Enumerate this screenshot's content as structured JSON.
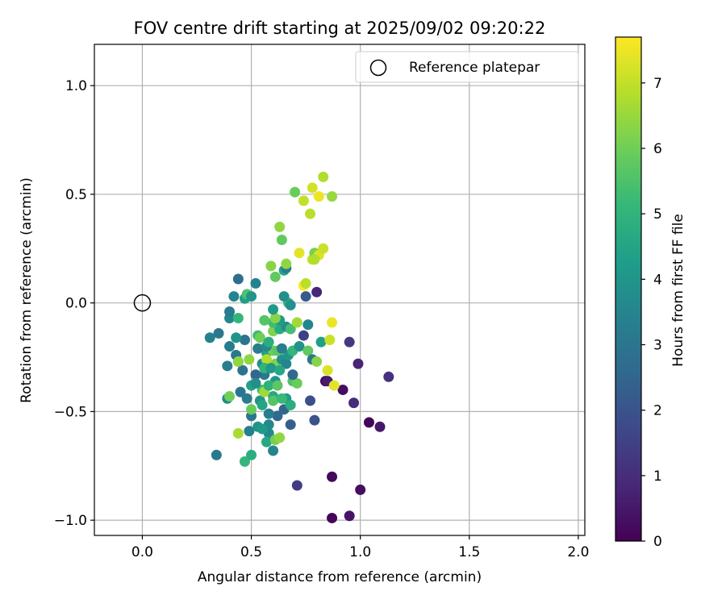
{
  "chart_data": {
    "type": "scatter",
    "title": "FOV centre drift starting at 2025/09/02 09:20:22",
    "xlabel": "Angular distance from reference (arcmin)",
    "ylabel": "Rotation from reference (arcmin)",
    "xlim": [
      -0.22,
      2.03
    ],
    "ylim": [
      -1.07,
      1.19
    ],
    "xticks": [
      0.0,
      0.5,
      1.0,
      1.5,
      2.0
    ],
    "xtick_labels": [
      "0.0",
      "0.5",
      "1.0",
      "1.5",
      "2.0"
    ],
    "yticks": [
      -1.0,
      -0.5,
      0.0,
      0.5,
      1.0
    ],
    "ytick_labels": [
      "−1.0",
      "−0.5",
      "0.0",
      "0.5",
      "1.0"
    ],
    "grid": true,
    "legend": {
      "location": "top-right",
      "entries": [
        {
          "label": "Reference platepar",
          "marker": "open-circle"
        }
      ]
    },
    "reference_point": {
      "x": 0.0,
      "y": 0.0
    },
    "colorbar": {
      "label": "Hours from first FF file",
      "range": [
        0,
        7.7
      ],
      "ticks": [
        0,
        1,
        2,
        3,
        4,
        5,
        6,
        7
      ],
      "tick_labels": [
        "0",
        "1",
        "2",
        "3",
        "4",
        "5",
        "6",
        "7"
      ],
      "colormap": [
        "#440154",
        "#482878",
        "#3e4989",
        "#31688e",
        "#26828e",
        "#1f9e89",
        "#35b779",
        "#6ece58",
        "#b5de2b",
        "#fde725"
      ]
    },
    "points": [
      {
        "x": 0.87,
        "y": -0.99,
        "c": 0.1
      },
      {
        "x": 0.95,
        "y": -0.98,
        "c": 0.4
      },
      {
        "x": 1.0,
        "y": -0.86,
        "c": 0.3
      },
      {
        "x": 0.87,
        "y": -0.8,
        "c": 0.2
      },
      {
        "x": 0.71,
        "y": -0.84,
        "c": 1.4
      },
      {
        "x": 1.04,
        "y": -0.55,
        "c": 0.1
      },
      {
        "x": 1.09,
        "y": -0.57,
        "c": 0.5
      },
      {
        "x": 0.97,
        "y": -0.46,
        "c": 0.9
      },
      {
        "x": 0.92,
        "y": -0.4,
        "c": 0.3
      },
      {
        "x": 0.84,
        "y": -0.36,
        "c": 0.2
      },
      {
        "x": 0.99,
        "y": -0.28,
        "c": 0.8
      },
      {
        "x": 1.13,
        "y": -0.34,
        "c": 1.1
      },
      {
        "x": 0.95,
        "y": -0.18,
        "c": 1.3
      },
      {
        "x": 0.79,
        "y": -0.54,
        "c": 2.0
      },
      {
        "x": 0.77,
        "y": -0.45,
        "c": 1.9
      },
      {
        "x": 0.75,
        "y": 0.03,
        "c": 2.2
      },
      {
        "x": 0.8,
        "y": 0.05,
        "c": 0.8
      },
      {
        "x": 0.74,
        "y": -0.15,
        "c": 1.5
      },
      {
        "x": 0.34,
        "y": -0.7,
        "c": 3.1
      },
      {
        "x": 0.6,
        "y": -0.68,
        "c": 3.5
      },
      {
        "x": 0.49,
        "y": -0.59,
        "c": 3.4
      },
      {
        "x": 0.53,
        "y": -0.57,
        "c": 4.0
      },
      {
        "x": 0.58,
        "y": -0.56,
        "c": 3.6
      },
      {
        "x": 0.68,
        "y": -0.56,
        "c": 2.3
      },
      {
        "x": 0.62,
        "y": -0.52,
        "c": 2.6
      },
      {
        "x": 0.5,
        "y": -0.52,
        "c": 3.0
      },
      {
        "x": 0.58,
        "y": -0.51,
        "c": 3.3
      },
      {
        "x": 0.65,
        "y": -0.49,
        "c": 2.5
      },
      {
        "x": 0.48,
        "y": -0.44,
        "c": 3.2
      },
      {
        "x": 0.54,
        "y": -0.45,
        "c": 3.9
      },
      {
        "x": 0.39,
        "y": -0.44,
        "c": 3.7
      },
      {
        "x": 0.45,
        "y": -0.41,
        "c": 3.0
      },
      {
        "x": 0.6,
        "y": -0.43,
        "c": 4.6
      },
      {
        "x": 0.66,
        "y": -0.44,
        "c": 4.2
      },
      {
        "x": 0.68,
        "y": -0.47,
        "c": 4.8
      },
      {
        "x": 0.55,
        "y": -0.4,
        "c": 5.3
      },
      {
        "x": 0.5,
        "y": -0.38,
        "c": 4.4
      },
      {
        "x": 0.56,
        "y": -0.33,
        "c": 3.1
      },
      {
        "x": 0.52,
        "y": -0.33,
        "c": 2.6
      },
      {
        "x": 0.61,
        "y": -0.36,
        "c": 4.0
      },
      {
        "x": 0.69,
        "y": -0.36,
        "c": 5.5
      },
      {
        "x": 0.71,
        "y": -0.37,
        "c": 5.9
      },
      {
        "x": 0.69,
        "y": -0.33,
        "c": 2.6
      },
      {
        "x": 0.55,
        "y": -0.28,
        "c": 3.8
      },
      {
        "x": 0.44,
        "y": -0.27,
        "c": 4.6
      },
      {
        "x": 0.39,
        "y": -0.29,
        "c": 3.3
      },
      {
        "x": 0.46,
        "y": -0.31,
        "c": 2.9
      },
      {
        "x": 0.49,
        "y": -0.26,
        "c": 6.4
      },
      {
        "x": 0.43,
        "y": -0.24,
        "c": 3.1
      },
      {
        "x": 0.61,
        "y": -0.28,
        "c": 6.2
      },
      {
        "x": 0.64,
        "y": -0.26,
        "c": 3.8
      },
      {
        "x": 0.66,
        "y": -0.28,
        "c": 3.5
      },
      {
        "x": 0.67,
        "y": -0.24,
        "c": 4.0
      },
      {
        "x": 0.57,
        "y": -0.23,
        "c": 4.4
      },
      {
        "x": 0.57,
        "y": -0.26,
        "c": 6.8
      },
      {
        "x": 0.6,
        "y": -0.22,
        "c": 6.0
      },
      {
        "x": 0.53,
        "y": -0.21,
        "c": 3.3
      },
      {
        "x": 0.69,
        "y": -0.22,
        "c": 5.1
      },
      {
        "x": 0.72,
        "y": -0.2,
        "c": 3.9
      },
      {
        "x": 0.76,
        "y": -0.22,
        "c": 5.8
      },
      {
        "x": 0.78,
        "y": -0.26,
        "c": 3.1
      },
      {
        "x": 0.8,
        "y": -0.27,
        "c": 6.3
      },
      {
        "x": 0.85,
        "y": -0.31,
        "c": 7.3
      },
      {
        "x": 0.4,
        "y": -0.2,
        "c": 3.2
      },
      {
        "x": 0.47,
        "y": -0.17,
        "c": 3.0
      },
      {
        "x": 0.43,
        "y": -0.16,
        "c": 4.0
      },
      {
        "x": 0.53,
        "y": -0.15,
        "c": 5.3
      },
      {
        "x": 0.54,
        "y": -0.16,
        "c": 6.0
      },
      {
        "x": 0.6,
        "y": -0.13,
        "c": 6.2
      },
      {
        "x": 0.63,
        "y": -0.12,
        "c": 4.7
      },
      {
        "x": 0.66,
        "y": -0.11,
        "c": 3.8
      },
      {
        "x": 0.68,
        "y": -0.12,
        "c": 5.4
      },
      {
        "x": 0.71,
        "y": -0.09,
        "c": 6.6
      },
      {
        "x": 0.6,
        "y": -0.09,
        "c": 5.3
      },
      {
        "x": 0.56,
        "y": -0.08,
        "c": 5.6
      },
      {
        "x": 0.63,
        "y": -0.08,
        "c": 4.2
      },
      {
        "x": 0.61,
        "y": -0.07,
        "c": 6.3
      },
      {
        "x": 0.76,
        "y": -0.1,
        "c": 3.5
      },
      {
        "x": 0.87,
        "y": -0.09,
        "c": 7.5
      },
      {
        "x": 0.82,
        "y": -0.18,
        "c": 4.3
      },
      {
        "x": 0.86,
        "y": -0.17,
        "c": 7.1
      },
      {
        "x": 0.31,
        "y": -0.16,
        "c": 3.4
      },
      {
        "x": 0.35,
        "y": -0.14,
        "c": 3.1
      },
      {
        "x": 0.4,
        "y": -0.07,
        "c": 3.5
      },
      {
        "x": 0.4,
        "y": -0.04,
        "c": 3.2
      },
      {
        "x": 0.44,
        "y": -0.07,
        "c": 5.1
      },
      {
        "x": 0.6,
        "y": -0.03,
        "c": 4.2
      },
      {
        "x": 0.67,
        "y": 0.0,
        "c": 5.0
      },
      {
        "x": 0.68,
        "y": -0.01,
        "c": 3.9
      },
      {
        "x": 0.42,
        "y": 0.03,
        "c": 3.5
      },
      {
        "x": 0.47,
        "y": 0.02,
        "c": 4.3
      },
      {
        "x": 0.48,
        "y": 0.04,
        "c": 5.5
      },
      {
        "x": 0.5,
        "y": 0.03,
        "c": 4.0
      },
      {
        "x": 0.44,
        "y": 0.11,
        "c": 2.8
      },
      {
        "x": 0.52,
        "y": 0.09,
        "c": 3.4
      },
      {
        "x": 0.65,
        "y": 0.03,
        "c": 3.8
      },
      {
        "x": 0.61,
        "y": 0.12,
        "c": 5.8
      },
      {
        "x": 0.65,
        "y": 0.15,
        "c": 4.5
      },
      {
        "x": 0.66,
        "y": 0.16,
        "c": 3.3
      },
      {
        "x": 0.66,
        "y": 0.18,
        "c": 6.4
      },
      {
        "x": 0.59,
        "y": 0.17,
        "c": 6.3
      },
      {
        "x": 0.74,
        "y": 0.08,
        "c": 7.7
      },
      {
        "x": 0.75,
        "y": 0.09,
        "c": 6.9
      },
      {
        "x": 0.72,
        "y": 0.23,
        "c": 7.4
      },
      {
        "x": 0.78,
        "y": 0.2,
        "c": 7.0
      },
      {
        "x": 0.79,
        "y": 0.23,
        "c": 6.1
      },
      {
        "x": 0.81,
        "y": 0.22,
        "c": 7.3
      },
      {
        "x": 0.83,
        "y": 0.25,
        "c": 7.1
      },
      {
        "x": 0.79,
        "y": 0.2,
        "c": 6.8
      },
      {
        "x": 0.64,
        "y": 0.29,
        "c": 5.8
      },
      {
        "x": 0.63,
        "y": 0.35,
        "c": 6.4
      },
      {
        "x": 0.77,
        "y": 0.41,
        "c": 6.9
      },
      {
        "x": 0.74,
        "y": 0.47,
        "c": 7.0
      },
      {
        "x": 0.7,
        "y": 0.51,
        "c": 5.9
      },
      {
        "x": 0.78,
        "y": 0.53,
        "c": 7.2
      },
      {
        "x": 0.81,
        "y": 0.49,
        "c": 7.5
      },
      {
        "x": 0.87,
        "y": 0.49,
        "c": 6.5
      },
      {
        "x": 0.83,
        "y": 0.58,
        "c": 6.8
      },
      {
        "x": 0.58,
        "y": -0.6,
        "c": 3.6
      },
      {
        "x": 0.55,
        "y": -0.58,
        "c": 4.2
      },
      {
        "x": 0.57,
        "y": -0.64,
        "c": 4.6
      },
      {
        "x": 0.61,
        "y": -0.63,
        "c": 6.1
      },
      {
        "x": 0.63,
        "y": -0.62,
        "c": 6.4
      },
      {
        "x": 0.44,
        "y": -0.6,
        "c": 6.7
      },
      {
        "x": 0.47,
        "y": -0.73,
        "c": 5.1
      },
      {
        "x": 0.5,
        "y": -0.7,
        "c": 4.8
      },
      {
        "x": 0.5,
        "y": -0.49,
        "c": 5.9
      },
      {
        "x": 0.55,
        "y": -0.47,
        "c": 4.5
      },
      {
        "x": 0.6,
        "y": -0.45,
        "c": 5.6
      },
      {
        "x": 0.64,
        "y": -0.44,
        "c": 5.2
      },
      {
        "x": 0.56,
        "y": -0.41,
        "c": 6.6
      },
      {
        "x": 0.52,
        "y": -0.37,
        "c": 3.8
      },
      {
        "x": 0.58,
        "y": -0.38,
        "c": 4.9
      },
      {
        "x": 0.62,
        "y": -0.38,
        "c": 5.7
      },
      {
        "x": 0.4,
        "y": -0.43,
        "c": 6.0
      },
      {
        "x": 0.44,
        "y": -0.27,
        "c": 6.4
      },
      {
        "x": 0.56,
        "y": -0.3,
        "c": 5.0
      },
      {
        "x": 0.59,
        "y": -0.3,
        "c": 4.1
      },
      {
        "x": 0.63,
        "y": -0.31,
        "c": 4.6
      },
      {
        "x": 0.62,
        "y": -0.22,
        "c": 5.7
      },
      {
        "x": 0.57,
        "y": -0.2,
        "c": 3.6
      },
      {
        "x": 0.58,
        "y": -0.18,
        "c": 4.8
      },
      {
        "x": 0.64,
        "y": -0.21,
        "c": 3.3
      },
      {
        "x": 0.85,
        "y": -0.36,
        "c": 0.6
      },
      {
        "x": 0.88,
        "y": -0.38,
        "c": 7.4
      }
    ]
  }
}
